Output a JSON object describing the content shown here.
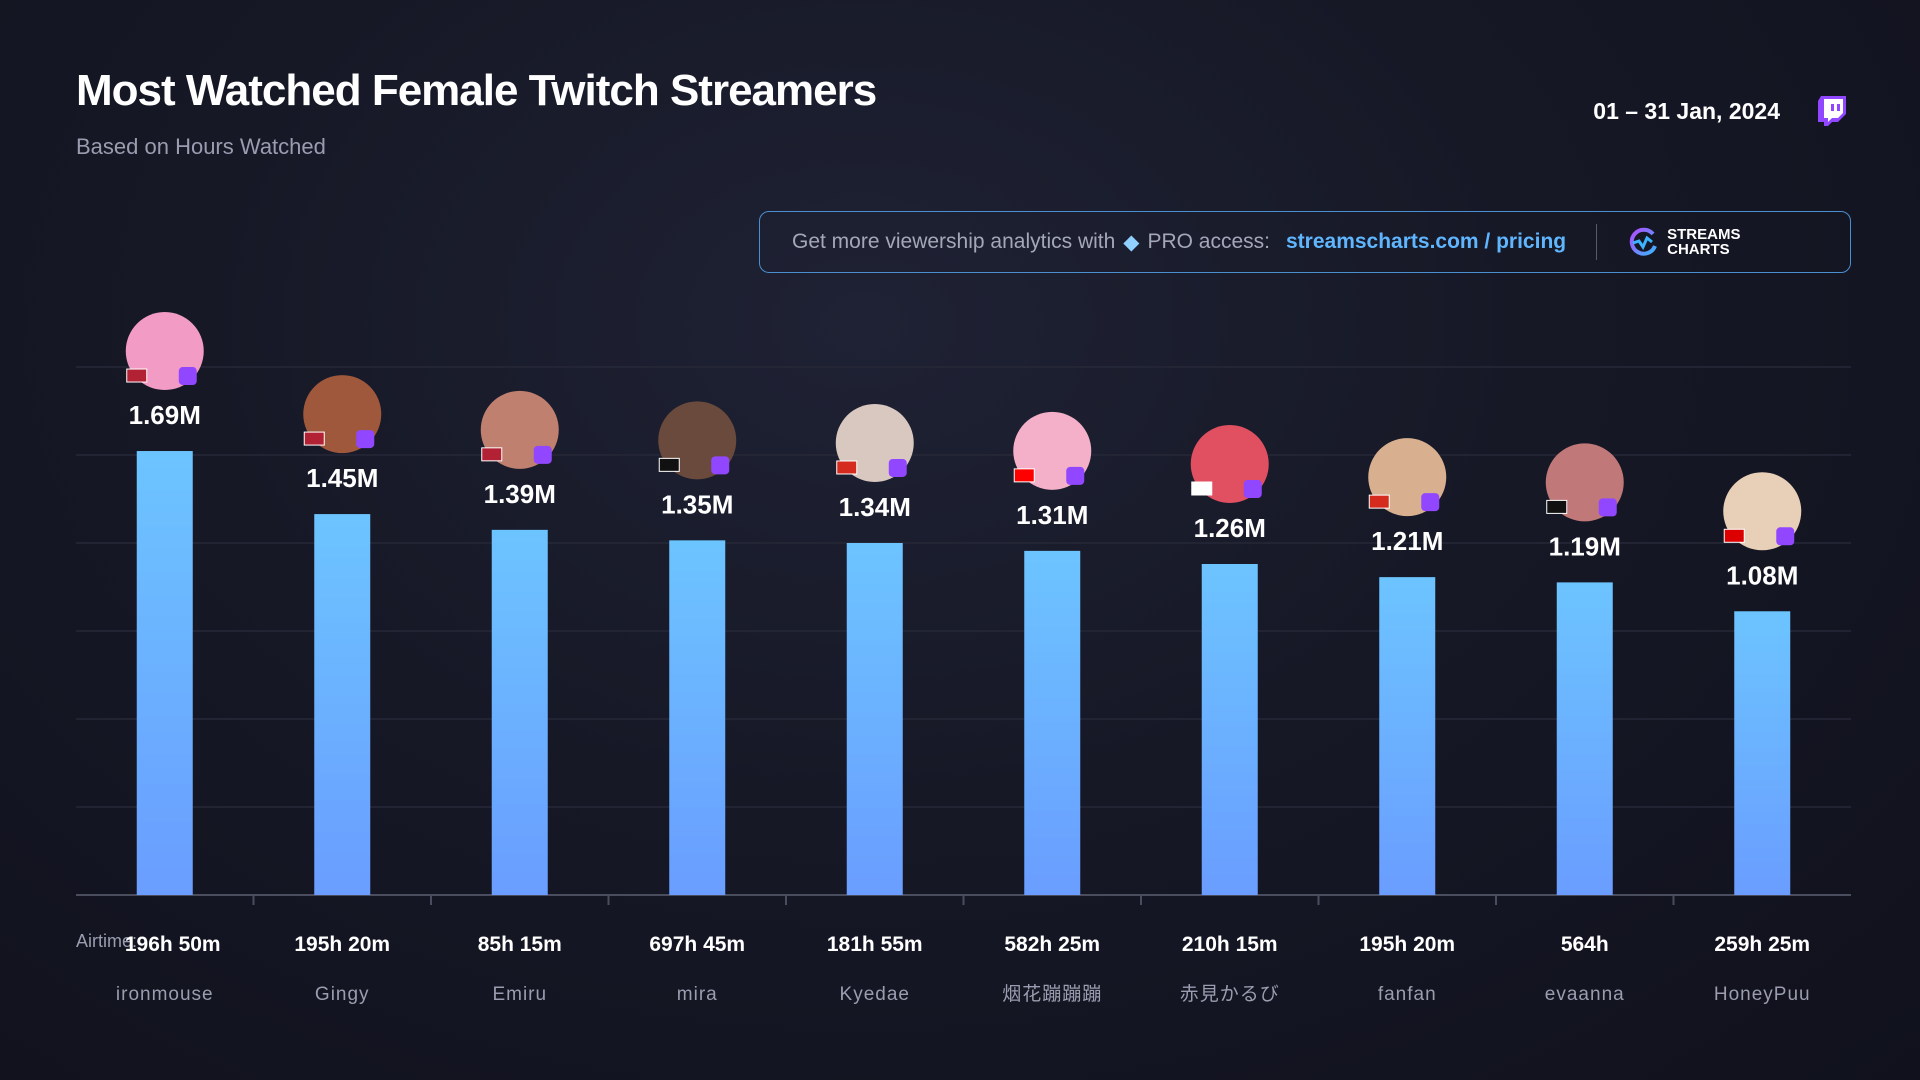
{
  "header": {
    "title": "Most Watched Female Twitch Streamers",
    "subtitle": "Based on Hours Watched",
    "date": "01 – 31 Jan, 2024",
    "platform_icon": "twitch-icon"
  },
  "banner": {
    "text": "Get more viewership analytics with",
    "gem_icon": "diamond-icon",
    "pro": "PRO access:",
    "link": "streamscharts.com / pricing",
    "logo_line1": "STREAMS",
    "logo_line2": "CHARTS"
  },
  "colors": {
    "bar_top": "#6cc4ff",
    "bar_bottom": "#6a9dff",
    "accent": "#9147ff",
    "link": "#5fb6ff"
  },
  "airtime_label": "Airtime:",
  "chart_data": {
    "type": "bar",
    "title": "Most Watched Female Twitch Streamers",
    "subtitle": "Based on Hours Watched",
    "categories": [
      "ironmouse",
      "Gingy",
      "Emiru",
      "mira",
      "Kyedae",
      "烟花蹦蹦蹦",
      "赤見かるび",
      "fanfan",
      "evaanna",
      "HoneyPuu"
    ],
    "values": [
      1.69,
      1.45,
      1.39,
      1.35,
      1.34,
      1.31,
      1.26,
      1.21,
      1.19,
      1.08
    ],
    "value_labels": [
      "1.69M",
      "1.45M",
      "1.39M",
      "1.35M",
      "1.34M",
      "1.31M",
      "1.26M",
      "1.21M",
      "1.19M",
      "1.08M"
    ],
    "airtime": [
      "196h 50m",
      "195h 20m",
      "85h 15m",
      "697h 45m",
      "181h 55m",
      "582h 25m",
      "210h 15m",
      "195h 20m",
      "564h",
      "259h 25m"
    ],
    "flags": [
      "US",
      "US",
      "US",
      "",
      "CA",
      "TW",
      "JP",
      "CA",
      "",
      "DE"
    ],
    "unit": "M hours watched",
    "ylim": [
      0,
      1.75
    ],
    "grid": true,
    "legend": "none"
  }
}
